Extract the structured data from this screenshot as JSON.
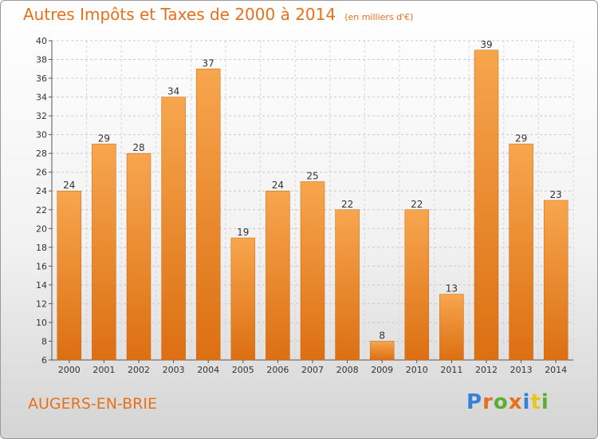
{
  "header": {
    "title": "Autres Impôts et Taxes de 2000 à 2014",
    "subtitle": "(en milliers d'€)"
  },
  "footer": {
    "commune": "AUGERS-EN-BRIE",
    "logo_text": "Proxiti"
  },
  "colors": {
    "bar_light": "#f7a64e",
    "bar_dark": "#dc6f12",
    "title": "#e8701a",
    "logo": [
      "#3a7fd6",
      "#e8701a",
      "#5cae33",
      "#e8701a",
      "#3a7fd6",
      "#e8c51a",
      "#5cae33"
    ]
  },
  "chart_data": {
    "type": "bar",
    "title": "Autres Impôts et Taxes de 2000 à 2014",
    "xlabel": "",
    "ylabel": "",
    "categories": [
      "2000",
      "2001",
      "2002",
      "2003",
      "2004",
      "2005",
      "2006",
      "2007",
      "2008",
      "2009",
      "2010",
      "2011",
      "2012",
      "2013",
      "2014"
    ],
    "values": [
      24,
      29,
      28,
      34,
      37,
      19,
      24,
      25,
      22,
      8,
      22,
      13,
      39,
      29,
      23
    ],
    "ylim": [
      6,
      40
    ],
    "yticks": [
      6,
      8,
      10,
      12,
      14,
      16,
      18,
      20,
      22,
      24,
      26,
      28,
      30,
      32,
      34,
      36,
      38,
      40
    ],
    "grid": true,
    "data_labels": true
  }
}
